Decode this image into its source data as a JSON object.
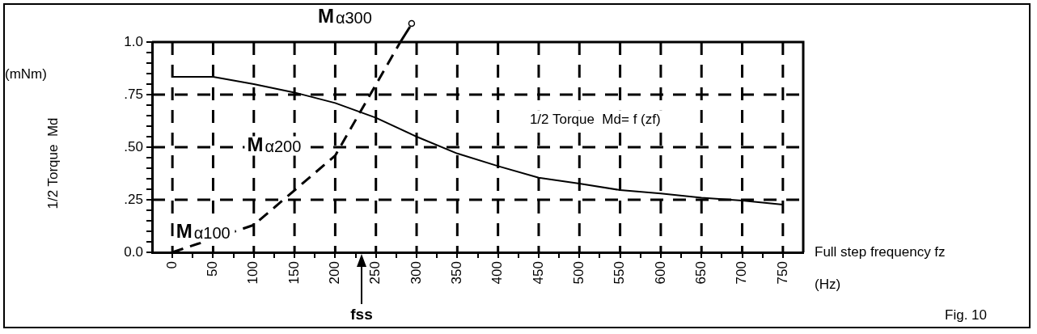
{
  "chart_data": {
    "type": "line",
    "xlabel": "Full step frequency fz",
    "ylabel": "1/2 Torque  Md",
    "xlim": [
      -25,
      775
    ],
    "ylim": [
      0,
      1
    ],
    "xticks": [
      0,
      {
        "value": 25,
        "label": null
      },
      50,
      {
        "value": 75,
        "label": null
      },
      100,
      {
        "value": 125,
        "label": null
      },
      150,
      {
        "value": 175,
        "label": null
      },
      200,
      {
        "value": 225,
        "label": null
      },
      250,
      {
        "value": 275,
        "label": null
      },
      300,
      {
        "value": 325,
        "label": null
      },
      350,
      {
        "value": 375,
        "label": null
      },
      400,
      {
        "value": 425,
        "label": null
      },
      450,
      {
        "value": 475,
        "label": null
      },
      500,
      {
        "value": 525,
        "label": null
      },
      550,
      {
        "value": 575,
        "label": null
      },
      600,
      {
        "value": 625,
        "label": null
      },
      650,
      {
        "value": 675,
        "label": null
      },
      700,
      {
        "value": 725,
        "label": null
      },
      750
    ],
    "yticks": [
      {
        "value": 0,
        "label": "0.0"
      },
      {
        "value": 0.05,
        "label": null
      },
      {
        "value": 0.1,
        "label": null
      },
      {
        "value": 0.15,
        "label": null
      },
      {
        "value": 0.2,
        "label": null
      },
      {
        "value": 0.25,
        "label": ".25"
      },
      {
        "value": 0.3,
        "label": null
      },
      {
        "value": 0.35,
        "label": null
      },
      {
        "value": 0.4,
        "label": null
      },
      {
        "value": 0.45,
        "label": null
      },
      {
        "value": 0.5,
        "label": ".50"
      },
      {
        "value": 0.55,
        "label": null
      },
      {
        "value": 0.6,
        "label": null
      },
      {
        "value": 0.65,
        "label": null
      },
      {
        "value": 0.7,
        "label": null
      },
      {
        "value": 0.75,
        "label": ".75"
      },
      {
        "value": 0.8,
        "label": null
      },
      {
        "value": 0.85,
        "label": null
      },
      {
        "value": 0.9,
        "label": null
      },
      {
        "value": 0.95,
        "label": null
      },
      {
        "value": 1,
        "label": "1.0"
      }
    ],
    "grid": true,
    "legend": false,
    "marker": "none",
    "series": [
      {
        "color": "#000000",
        "line_style": "solid",
        "x": [
          0,
          50,
          100,
          150,
          200,
          250,
          300,
          350,
          400,
          450,
          500,
          550,
          600,
          650,
          700,
          750
        ],
        "values": [
          0.835,
          0.835,
          0.8,
          0.76,
          0.71,
          0.64,
          0.55,
          0.47,
          0.41,
          0.355,
          0.327,
          0.296,
          0.28,
          0.26,
          0.246,
          0.227
        ]
      },
      {
        "color": "#000000",
        "line_style": "dashed",
        "x": [
          0,
          100,
          200,
          280
        ],
        "values": [
          0,
          0.13,
          0.46,
          1.0
        ]
      }
    ],
    "annotations": [
      {
        "text": "Mα100",
        "x": 100,
        "y": 0.13
      },
      {
        "text": "Mα200",
        "x": 200,
        "y": 0.46
      },
      {
        "text": "Mα300",
        "x": 280,
        "y": 1.0
      },
      "fss",
      "1/2 Torque  Md= f (zf)",
      "(mNm)",
      "(Hz)",
      "Fig. 10"
    ]
  }
}
